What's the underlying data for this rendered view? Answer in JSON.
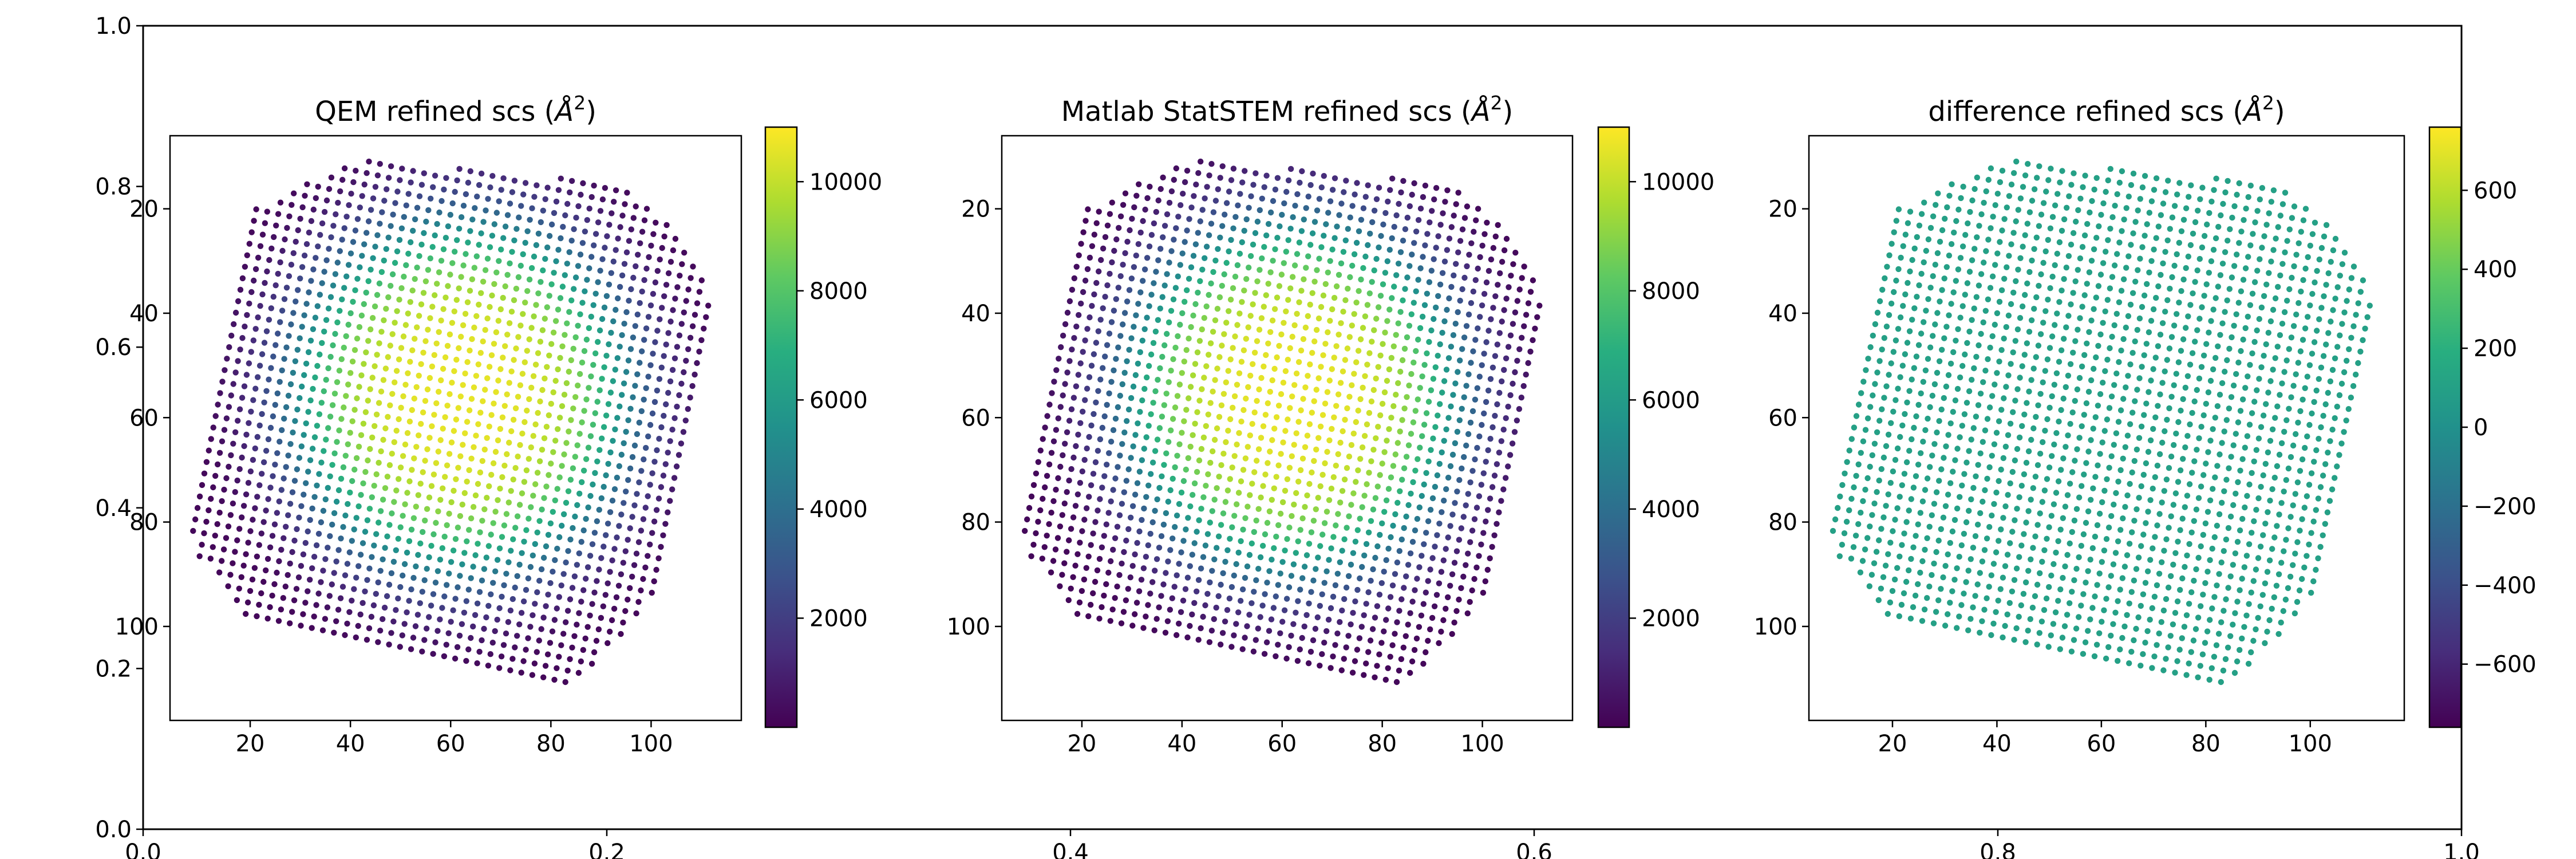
{
  "figure": {
    "background_axis": {
      "xticks": [
        "0.0",
        "0.2",
        "0.4",
        "0.6",
        "0.8",
        "1.0"
      ],
      "yticks": [
        "0.0",
        "0.2",
        "0.4",
        "0.6",
        "0.8",
        "1.0"
      ]
    }
  },
  "chart_data": [
    {
      "type": "scatter",
      "title": "QEM refined scs ($\\AA^2$)",
      "title_prefix": "QEM refined scs (",
      "title_suffix": ")",
      "unit_symbol": "Å",
      "unit_power": "2",
      "xlim": [
        4,
        118
      ],
      "ylim": [
        118,
        6
      ],
      "xticks": [
        20,
        40,
        60,
        80,
        100
      ],
      "yticks": [
        20,
        40,
        60,
        80,
        100
      ],
      "colormap": "viridis",
      "value_field": "qem",
      "colorbar": {
        "min": 0,
        "max": 11000,
        "ticks": [
          2000,
          4000,
          6000,
          8000,
          10000
        ],
        "tick_labels": [
          "2000",
          "4000",
          "6000",
          "8000",
          "10000"
        ]
      },
      "lattice": {
        "origin": [
          41.5,
          10.5
        ],
        "a": [
          2.2,
          0.45
        ],
        "b": [
          -0.45,
          2.2
        ],
        "range": [
          -10,
          40
        ]
      },
      "boundary": [
        [
          43,
          10.5
        ],
        [
          92,
          15
        ],
        [
          104,
          22
        ],
        [
          110,
          31
        ],
        [
          112,
          40
        ],
        [
          108,
          56
        ],
        [
          104,
          82
        ],
        [
          100,
          95
        ],
        [
          86,
          110
        ],
        [
          68,
          116
        ],
        [
          44,
          111
        ],
        [
          20,
          100
        ],
        [
          10,
          87
        ],
        [
          7,
          80
        ],
        [
          16,
          37
        ],
        [
          21,
          20
        ],
        [
          40,
          11
        ]
      ],
      "model": {
        "center": [
          62,
          56
        ],
        "peak": 10600,
        "floor": 200,
        "falloff": 6.5e-07,
        "exponent": 4
      }
    },
    {
      "type": "scatter",
      "title": "Matlab StatSTEM refined scs ($\\AA^2$)",
      "title_prefix": "Matlab StatSTEM refined scs (",
      "title_suffix": ")",
      "unit_symbol": "Å",
      "unit_power": "2",
      "xlim": [
        4,
        118
      ],
      "ylim": [
        118,
        6
      ],
      "xticks": [
        20,
        40,
        60,
        80,
        100
      ],
      "yticks": [
        20,
        40,
        60,
        80,
        100
      ],
      "colormap": "viridis",
      "value_field": "statstem",
      "colorbar": {
        "min": 0,
        "max": 11000,
        "ticks": [
          2000,
          4000,
          6000,
          8000,
          10000
        ],
        "tick_labels": [
          "2000",
          "4000",
          "6000",
          "8000",
          "10000"
        ]
      },
      "lattice": {
        "origin": [
          41.5,
          10.5
        ],
        "a": [
          2.2,
          0.45
        ],
        "b": [
          -0.45,
          2.2
        ],
        "range": [
          -10,
          40
        ]
      },
      "boundary": [
        [
          43,
          10.5
        ],
        [
          92,
          15
        ],
        [
          104,
          22
        ],
        [
          110,
          31
        ],
        [
          112,
          40
        ],
        [
          108,
          56
        ],
        [
          104,
          82
        ],
        [
          100,
          95
        ],
        [
          86,
          110
        ],
        [
          68,
          116
        ],
        [
          44,
          111
        ],
        [
          20,
          100
        ],
        [
          10,
          87
        ],
        [
          7,
          80
        ],
        [
          16,
          37
        ],
        [
          21,
          20
        ],
        [
          40,
          11
        ]
      ],
      "model": {
        "center": [
          62,
          56
        ],
        "peak": 10600,
        "floor": 200,
        "falloff": 6.5e-07,
        "exponent": 4
      }
    },
    {
      "type": "scatter",
      "title": "difference refined scs ($\\AA^2$)",
      "title_prefix": "difference refined scs (",
      "title_suffix": ")",
      "unit_symbol": "Å",
      "unit_power": "2",
      "xlim": [
        4,
        118
      ],
      "ylim": [
        118,
        6
      ],
      "xticks": [
        20,
        40,
        60,
        80,
        100
      ],
      "yticks": [
        20,
        40,
        60,
        80,
        100
      ],
      "colormap": "viridis",
      "value_field": "difference",
      "colorbar": {
        "min": -760,
        "max": 760,
        "ticks": [
          -600,
          -400,
          -200,
          0,
          200,
          400,
          600
        ],
        "tick_labels": [
          "−600",
          "−400",
          "−200",
          "0",
          "200",
          "400",
          "600"
        ]
      },
      "lattice": {
        "origin": [
          41.5,
          10.5
        ],
        "a": [
          2.2,
          0.45
        ],
        "b": [
          -0.45,
          2.2
        ],
        "range": [
          -10,
          40
        ]
      },
      "boundary": [
        [
          43,
          10.5
        ],
        [
          92,
          15
        ],
        [
          104,
          22
        ],
        [
          110,
          31
        ],
        [
          112,
          40
        ],
        [
          108,
          56
        ],
        [
          104,
          82
        ],
        [
          100,
          95
        ],
        [
          86,
          110
        ],
        [
          68,
          116
        ],
        [
          44,
          111
        ],
        [
          20,
          100
        ],
        [
          10,
          87
        ],
        [
          7,
          80
        ],
        [
          16,
          37
        ],
        [
          21,
          20
        ],
        [
          40,
          11
        ]
      ],
      "model": {
        "constant": 100
      }
    }
  ]
}
